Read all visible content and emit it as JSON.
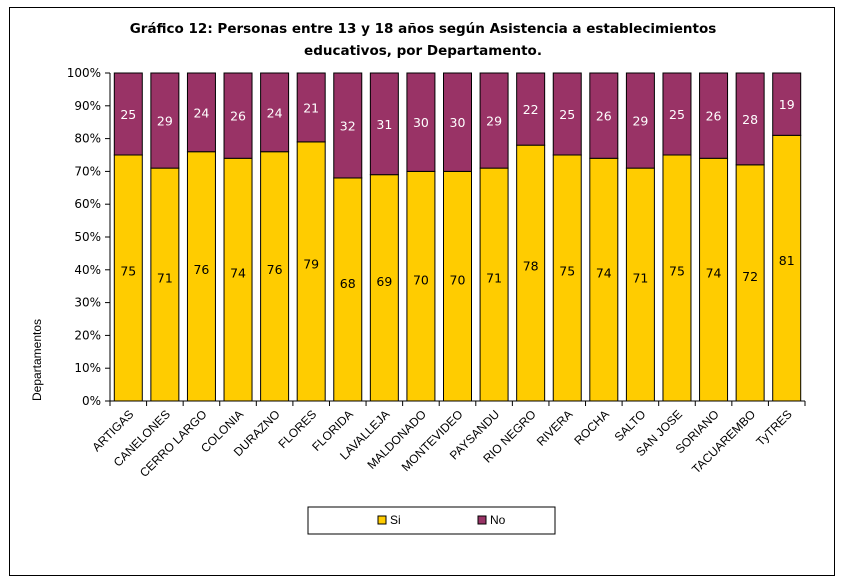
{
  "chart_data": {
    "type": "bar",
    "stacked": true,
    "percent": true,
    "title_lines": [
      "Gráfico 12: Personas entre 13 y 18 años según Asistencia a establecimientos",
      "educativos, por Departamento."
    ],
    "xlabel": "",
    "ylabel": "Departamentos",
    "ylim": [
      0,
      100
    ],
    "y_ticks": [
      "0%",
      "10%",
      "20%",
      "30%",
      "40%",
      "50%",
      "60%",
      "70%",
      "80%",
      "90%",
      "100%"
    ],
    "categories": [
      "ARTIGAS",
      "CANELONES",
      "CERRO LARGO",
      "COLONIA",
      "DURAZNO",
      "FLORES",
      "FLORIDA",
      "LAVALLEJA",
      "MALDONADO",
      "MONTEVIDEO",
      "PAYSANDU",
      "RIO NEGRO",
      "RIVERA",
      "ROCHA",
      "SALTO",
      "SAN JOSE",
      "SORIANO",
      "TACUAREMBO",
      "TyTRES"
    ],
    "series": [
      {
        "name": "Si",
        "color": "#FFCC00",
        "label_color": "#000000",
        "values": [
          75,
          71,
          76,
          74,
          76,
          79,
          68,
          69,
          70,
          70,
          71,
          78,
          75,
          74,
          71,
          75,
          74,
          72,
          81
        ]
      },
      {
        "name": "No",
        "color": "#993366",
        "label_color": "#FFFFFF",
        "values": [
          25,
          29,
          24,
          26,
          24,
          21,
          32,
          31,
          30,
          30,
          29,
          22,
          25,
          26,
          29,
          25,
          26,
          28,
          19
        ]
      }
    ],
    "legend_position": "bottom",
    "grid": false
  }
}
